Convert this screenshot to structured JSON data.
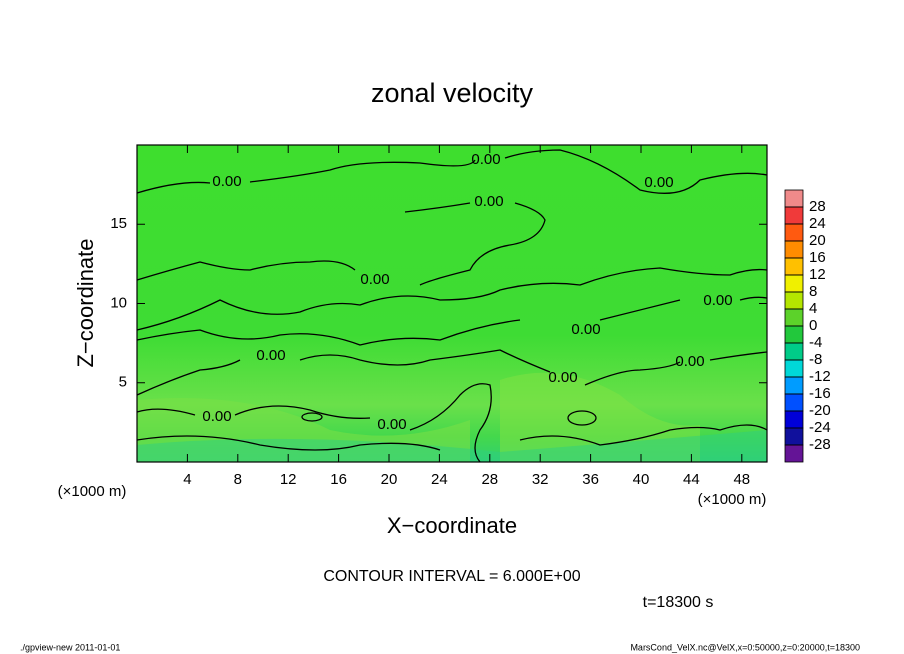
{
  "chart_data": {
    "type": "contour",
    "title": "zonal velocity",
    "x_label": "X−coordinate",
    "y_label": "Z−coordinate",
    "x_unit_label": "(×1000 m)",
    "xlim": [
      0,
      50
    ],
    "ylim": [
      0,
      20
    ],
    "xticks": [
      4,
      8,
      12,
      16,
      20,
      24,
      28,
      32,
      36,
      40,
      44,
      48
    ],
    "yticks": [
      5,
      10,
      15
    ],
    "contour_labels": [
      "0.00",
      "0.00",
      "0.00",
      "0.00",
      "0.00",
      "0.00",
      "0.00",
      "0.00",
      "0.00",
      "0.00",
      "0.00",
      "0.00"
    ],
    "contour_interval_label": "CONTOUR INTERVAL = 6.000E+00",
    "time_label": "t=18300 s",
    "colorbar": {
      "levels": [
        28,
        24,
        20,
        16,
        12,
        8,
        4,
        0,
        -4,
        -8,
        -12,
        -16,
        -20,
        -24,
        -28
      ],
      "colors": [
        "#f08a8a",
        "#f03a3a",
        "#ff5a10",
        "#ff8c00",
        "#ffc000",
        "#f0f000",
        "#b4e600",
        "#5cd22a",
        "#22c83c",
        "#00cc88",
        "#00d8d8",
        "#009cff",
        "#0050ff",
        "#0000d8",
        "#10109c",
        "#641496"
      ]
    },
    "footer_left": "./gpview-new   2011-01-01",
    "footer_right": "MarsCond_VelX.nc@VelX,x=0:50000,z=0:20000,t=18300"
  }
}
